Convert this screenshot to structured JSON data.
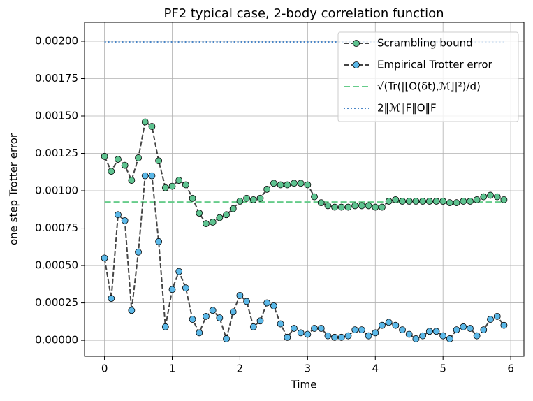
{
  "chart_data": {
    "type": "line",
    "title": "PF2 typical case, 2-body correlation function",
    "x_label": "Time",
    "y_label": "one step Trotter error",
    "x": [
      0,
      0.1,
      0.2,
      0.3,
      0.4,
      0.5,
      0.6,
      0.7,
      0.8,
      0.9,
      1.0,
      1.1,
      1.2,
      1.3,
      1.4,
      1.5,
      1.6,
      1.7,
      1.8,
      1.9,
      2.0,
      2.1,
      2.2,
      2.3,
      2.4,
      2.5,
      2.6,
      2.7,
      2.8,
      2.9,
      3.0,
      3.1,
      3.2,
      3.3,
      3.4,
      3.5,
      3.6,
      3.7,
      3.8,
      3.9,
      4.0,
      4.1,
      4.2,
      4.3,
      4.4,
      4.5,
      4.6,
      4.7,
      4.8,
      4.9,
      5.0,
      5.1,
      5.2,
      5.3,
      5.4,
      5.5,
      5.6,
      5.7,
      5.8,
      5.9
    ],
    "series": [
      {
        "name": "Scrambling bound",
        "color": "#5ec390",
        "line_color": "#444444",
        "values": [
          0.00123,
          0.00113,
          0.00121,
          0.00117,
          0.00107,
          0.00122,
          0.00146,
          0.00143,
          0.0012,
          0.00102,
          0.00103,
          0.00107,
          0.00104,
          0.00095,
          0.00085,
          0.00078,
          0.00079,
          0.00082,
          0.00084,
          0.00088,
          0.00093,
          0.00095,
          0.00094,
          0.00095,
          0.00101,
          0.00105,
          0.00104,
          0.00104,
          0.00105,
          0.00105,
          0.00104,
          0.00096,
          0.00092,
          0.0009,
          0.00089,
          0.00089,
          0.00089,
          0.0009,
          0.0009,
          0.0009,
          0.00089,
          0.00089,
          0.00093,
          0.00094,
          0.00093,
          0.00093,
          0.00093,
          0.00093,
          0.00093,
          0.00093,
          0.00093,
          0.00092,
          0.00092,
          0.00093,
          0.00093,
          0.00094,
          0.00096,
          0.00097,
          0.00096,
          0.00094
        ]
      },
      {
        "name": "Empirical Trotter error",
        "color": "#5bb8e8",
        "line_color": "#444444",
        "values": [
          0.00055,
          0.00028,
          0.00084,
          0.0008,
          0.0002,
          0.00059,
          0.0011,
          0.0011,
          0.00066,
          9e-05,
          0.00034,
          0.00046,
          0.00035,
          0.00014,
          5e-05,
          0.00016,
          0.0002,
          0.00015,
          1e-05,
          0.00019,
          0.0003,
          0.00026,
          9e-05,
          0.00013,
          0.00025,
          0.00023,
          0.00011,
          2e-05,
          8e-05,
          5e-05,
          4e-05,
          8e-05,
          8e-05,
          3e-05,
          2e-05,
          2e-05,
          3e-05,
          7e-05,
          7e-05,
          3e-05,
          5e-05,
          0.0001,
          0.00012,
          0.0001,
          7e-05,
          4e-05,
          1e-05,
          3e-05,
          6e-05,
          6e-05,
          3e-05,
          1e-05,
          7e-05,
          9e-05,
          8e-05,
          3e-05,
          7e-05,
          0.00014,
          0.00016,
          0.0001
        ]
      }
    ],
    "reference_lines": [
      {
        "name": "√(Tr(|[O(δt),ℳ]|²)/d)",
        "color": "#66cc8a",
        "style": "dashed",
        "value": 0.000925,
        "xrange": [
          0,
          5.9
        ]
      },
      {
        "name": "2‖ℳ‖F‖O‖F",
        "color": "#4a86c8",
        "style": "dotted",
        "value": 0.001995,
        "xrange": [
          0,
          5.9
        ]
      }
    ],
    "xlim": [
      -0.295,
      6.195
    ],
    "ylim": [
      -0.000107,
      0.002126
    ],
    "xticks": [
      0,
      1,
      2,
      3,
      4,
      5,
      6
    ],
    "yticks": [
      {
        "value": 0,
        "label": "0.00000"
      },
      {
        "value": 0.00025,
        "label": "0.00025"
      },
      {
        "value": 0.0005,
        "label": "0.00050"
      },
      {
        "value": 0.00075,
        "label": "0.00075"
      },
      {
        "value": 0.001,
        "label": "0.00100"
      },
      {
        "value": 0.00125,
        "label": "0.00125"
      },
      {
        "value": 0.0015,
        "label": "0.00150"
      },
      {
        "value": 0.00175,
        "label": "0.00175"
      },
      {
        "value": 0.002,
        "label": "0.00200"
      }
    ],
    "grid": true,
    "legend": "upper right"
  }
}
